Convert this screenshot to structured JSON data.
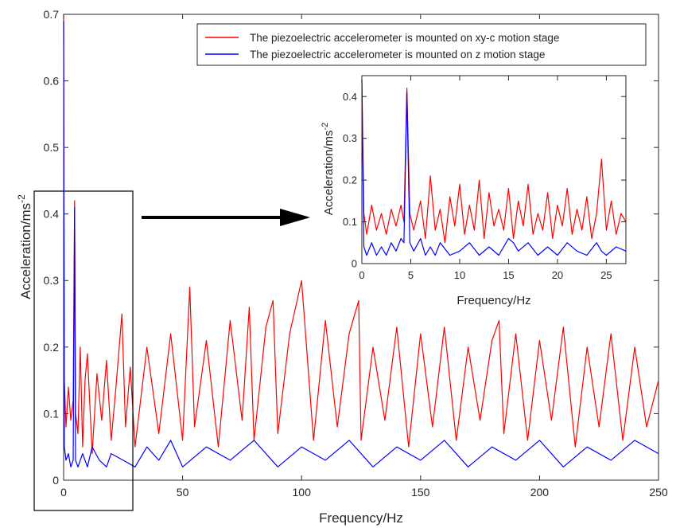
{
  "chart_data": {
    "type": "line",
    "xlabel": "Frequency/Hz",
    "ylabel": "Acceleration/ms",
    "ylabel_exp": "-2",
    "xlim": [
      0,
      250
    ],
    "ylim": [
      0,
      0.7
    ],
    "xticks": [
      "0",
      "50",
      "100",
      "150",
      "200",
      "250"
    ],
    "xtick_values": [
      0,
      50,
      100,
      150,
      200,
      250
    ],
    "yticks": [
      "0",
      "0.1",
      "0.2",
      "0.3",
      "0.4",
      "0.5",
      "0.6",
      "0.7"
    ],
    "ytick_values": [
      0,
      0.1,
      0.2,
      0.3,
      0.4,
      0.5,
      0.6,
      0.7
    ],
    "grid": false,
    "legend_position": "top-right",
    "series": [
      {
        "name": "The piezoelectric accelerometer is mounted on xy-c motion stage",
        "color": "#ff0000",
        "x": [
          0,
          0.3,
          1,
          2,
          3,
          4,
          4.6,
          5,
          6,
          7,
          8,
          9,
          10,
          12,
          14,
          16,
          18,
          20,
          22,
          24.5,
          26,
          28,
          30,
          35,
          40,
          45,
          50,
          53,
          55,
          60,
          65,
          70,
          75,
          78,
          80,
          85,
          88,
          90,
          95,
          100,
          105,
          110,
          115,
          120,
          124,
          125,
          130,
          135,
          140,
          145,
          150,
          155,
          160,
          165,
          170,
          175,
          180,
          183,
          185,
          190,
          195,
          200,
          205,
          210,
          215,
          220,
          225,
          230,
          235,
          240,
          245,
          250
        ],
        "y": [
          0.7,
          0.15,
          0.08,
          0.14,
          0.09,
          0.12,
          0.42,
          0.1,
          0.07,
          0.2,
          0.05,
          0.15,
          0.19,
          0.04,
          0.16,
          0.09,
          0.18,
          0.06,
          0.14,
          0.25,
          0.08,
          0.17,
          0.05,
          0.2,
          0.07,
          0.22,
          0.06,
          0.29,
          0.08,
          0.21,
          0.05,
          0.24,
          0.09,
          0.26,
          0.06,
          0.23,
          0.27,
          0.07,
          0.22,
          0.3,
          0.06,
          0.24,
          0.08,
          0.22,
          0.27,
          0.06,
          0.2,
          0.09,
          0.23,
          0.05,
          0.22,
          0.08,
          0.23,
          0.06,
          0.2,
          0.09,
          0.21,
          0.24,
          0.07,
          0.22,
          0.06,
          0.21,
          0.09,
          0.23,
          0.05,
          0.2,
          0.08,
          0.22,
          0.06,
          0.2,
          0.08,
          0.15
        ]
      },
      {
        "name": "The piezoelectric accelerometer is mounted on z motion stage",
        "color": "#0000ff",
        "x": [
          0,
          0.3,
          1,
          2,
          3,
          4,
          4.6,
          5,
          6,
          8,
          10,
          12,
          15,
          18,
          20,
          25,
          30,
          35,
          40,
          45,
          50,
          60,
          70,
          80,
          90,
          100,
          110,
          120,
          130,
          140,
          150,
          160,
          170,
          180,
          190,
          200,
          210,
          220,
          230,
          240,
          250
        ],
        "y": [
          0.69,
          0.05,
          0.03,
          0.04,
          0.02,
          0.03,
          0.41,
          0.03,
          0.02,
          0.04,
          0.02,
          0.05,
          0.03,
          0.02,
          0.04,
          0.03,
          0.02,
          0.05,
          0.03,
          0.06,
          0.02,
          0.05,
          0.03,
          0.06,
          0.02,
          0.05,
          0.03,
          0.06,
          0.02,
          0.05,
          0.03,
          0.06,
          0.02,
          0.05,
          0.03,
          0.06,
          0.02,
          0.05,
          0.03,
          0.06,
          0.04
        ]
      }
    ],
    "inset": {
      "xlabel": "Frequency/Hz",
      "ylabel": "Acceleration/ms",
      "ylabel_exp": "-2",
      "xlim": [
        0,
        27
      ],
      "ylim": [
        0,
        0.45
      ],
      "xticks": [
        "0",
        "5",
        "10",
        "15",
        "20",
        "25"
      ],
      "xtick_values": [
        0,
        5,
        10,
        15,
        20,
        25
      ],
      "yticks": [
        "0",
        "0.1",
        "0.2",
        "0.3",
        "0.4"
      ],
      "ytick_values": [
        0,
        0.1,
        0.2,
        0.3,
        0.4
      ],
      "series": [
        {
          "color": "#ff0000",
          "x": [
            0,
            0.2,
            0.5,
            1,
            1.5,
            2,
            2.5,
            3,
            3.5,
            4,
            4.3,
            4.6,
            4.9,
            5.3,
            6,
            6.5,
            7,
            7.5,
            8,
            8.5,
            9,
            9.5,
            10,
            10.5,
            11,
            11.5,
            12,
            12.5,
            13,
            13.5,
            14,
            14.5,
            15,
            15.5,
            16,
            16.5,
            17,
            17.5,
            18,
            18.5,
            19,
            19.5,
            20,
            20.5,
            21,
            21.5,
            22,
            22.5,
            23,
            23.5,
            24,
            24.5,
            25,
            25.5,
            26,
            26.5,
            27
          ],
          "y": [
            0.44,
            0.12,
            0.07,
            0.14,
            0.08,
            0.12,
            0.07,
            0.13,
            0.09,
            0.14,
            0.1,
            0.42,
            0.12,
            0.08,
            0.15,
            0.06,
            0.21,
            0.08,
            0.13,
            0.05,
            0.16,
            0.09,
            0.19,
            0.07,
            0.14,
            0.08,
            0.2,
            0.06,
            0.17,
            0.09,
            0.13,
            0.08,
            0.18,
            0.06,
            0.15,
            0.09,
            0.19,
            0.07,
            0.12,
            0.08,
            0.17,
            0.06,
            0.14,
            0.09,
            0.18,
            0.07,
            0.13,
            0.08,
            0.16,
            0.06,
            0.12,
            0.25,
            0.08,
            0.15,
            0.07,
            0.12,
            0.1
          ]
        },
        {
          "color": "#0000ff",
          "x": [
            0,
            0.2,
            0.5,
            1,
            1.5,
            2,
            2.5,
            3,
            3.5,
            4,
            4.3,
            4.6,
            4.9,
            5.3,
            6,
            6.5,
            7,
            7.5,
            8,
            9,
            10,
            11,
            12,
            13,
            14,
            15,
            15.5,
            16,
            17,
            18,
            19,
            20,
            21,
            22,
            23,
            24,
            24.5,
            25,
            26,
            27
          ],
          "y": [
            0.44,
            0.04,
            0.02,
            0.05,
            0.02,
            0.04,
            0.02,
            0.05,
            0.03,
            0.06,
            0.05,
            0.41,
            0.05,
            0.03,
            0.06,
            0.02,
            0.04,
            0.02,
            0.05,
            0.02,
            0.03,
            0.05,
            0.02,
            0.04,
            0.02,
            0.06,
            0.05,
            0.03,
            0.05,
            0.02,
            0.04,
            0.02,
            0.05,
            0.03,
            0.02,
            0.05,
            0.03,
            0.02,
            0.04,
            0.03
          ]
        }
      ]
    },
    "annotations": [
      "rectangle marks 0–27 Hz region of main plot",
      "arrow points from marked region to inset"
    ]
  }
}
